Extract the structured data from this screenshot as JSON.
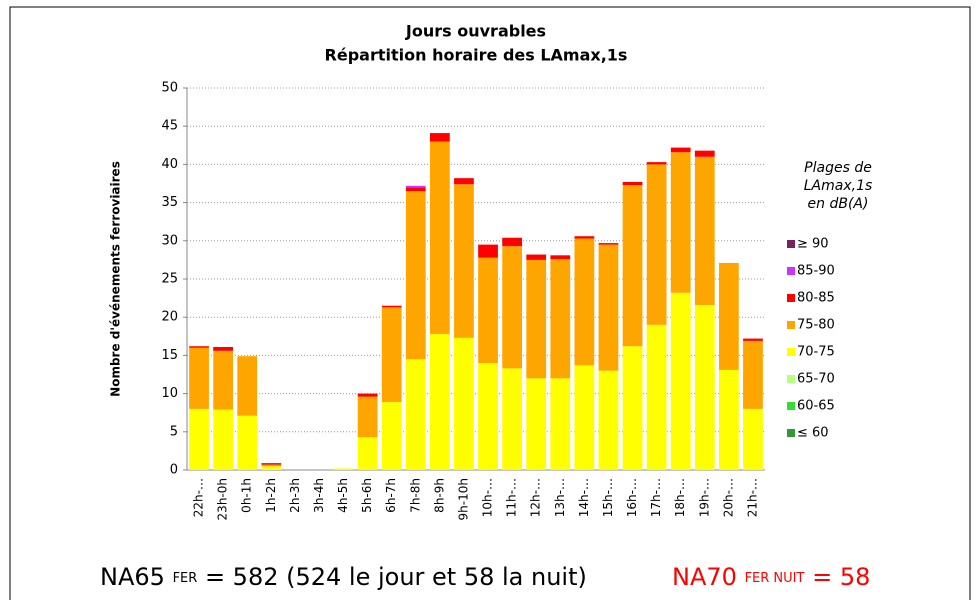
{
  "chart_data": {
    "type": "stacked-bar",
    "title": [
      "Jours ouvrables",
      "Répartition horaire des LAmax,1s"
    ],
    "y_label": "Nombre d'événements ferroviaires",
    "legend_title": [
      "Plages de",
      "LAmax,1s",
      "en dB(A)"
    ],
    "categories": [
      "22h-…",
      "23h-0h",
      "0h-1h",
      "1h-2h",
      "2h-3h",
      "3h-4h",
      "4h-5h",
      "5h-6h",
      "6h-7h",
      "7h-8h",
      "8h-9h",
      "9h-10h",
      "10h-…",
      "11h-…",
      "12h-…",
      "13h-…",
      "14h-…",
      "15h-…",
      "16h-…",
      "17h-…",
      "18h-…",
      "19h-…",
      "20h-…",
      "21h-…"
    ],
    "series": [
      {
        "name": "≥ 90",
        "color": "#7b1f5f",
        "values": [
          0,
          0,
          0,
          0,
          0,
          0,
          0,
          0,
          0,
          0,
          0,
          0,
          0,
          0,
          0,
          0,
          0,
          0,
          0,
          0,
          0,
          0,
          0,
          0
        ]
      },
      {
        "name": "85-90",
        "color": "#cc33ff",
        "values": [
          0,
          0,
          0,
          0,
          0,
          0,
          0,
          0,
          0,
          0.2,
          0,
          0,
          0,
          0,
          0,
          0,
          0,
          0,
          0,
          0,
          0,
          0,
          0,
          0
        ]
      },
      {
        "name": "80-85",
        "color": "#ff0000",
        "values": [
          0.2,
          0.5,
          0,
          0.2,
          0,
          0,
          0,
          0.4,
          0.2,
          0.5,
          1.1,
          0.8,
          1.7,
          1.1,
          0.7,
          0.5,
          0.3,
          0.2,
          0.4,
          0.3,
          0.6,
          0.8,
          0,
          0.3
        ]
      },
      {
        "name": "75-80",
        "color": "#ffa500",
        "values": [
          8,
          7.7,
          7.8,
          0.2,
          0,
          0,
          0,
          5.3,
          12.4,
          22,
          25.2,
          20.1,
          13.8,
          16,
          15.5,
          15.6,
          16.6,
          16.5,
          21.1,
          21,
          18.4,
          19.4,
          14,
          8.9
        ]
      },
      {
        "name": "70-75",
        "color": "#ffff00",
        "values": [
          8,
          7.9,
          7.1,
          0.5,
          0,
          0,
          0.2,
          4.3,
          8.9,
          14.5,
          17.8,
          17.3,
          14,
          13.3,
          12,
          12,
          13.7,
          13,
          16.2,
          19,
          23.2,
          21.6,
          13.1,
          8
        ]
      },
      {
        "name": "65-70",
        "color": "#b3ff80",
        "values": [
          0,
          0,
          0,
          0,
          0,
          0,
          0,
          0,
          0,
          0,
          0,
          0,
          0,
          0,
          0,
          0,
          0,
          0,
          0,
          0,
          0,
          0,
          0,
          0
        ]
      },
      {
        "name": "60-65",
        "color": "#33dd33",
        "values": [
          0,
          0,
          0,
          0,
          0,
          0,
          0,
          0,
          0,
          0,
          0,
          0,
          0,
          0,
          0,
          0,
          0,
          0,
          0,
          0,
          0,
          0,
          0,
          0
        ]
      },
      {
        "name": "≤  60",
        "color": "#339933",
        "values": [
          0,
          0,
          0,
          0,
          0,
          0,
          0,
          0,
          0,
          0,
          0,
          0,
          0,
          0,
          0,
          0,
          0,
          0,
          0,
          0,
          0,
          0,
          0,
          0
        ]
      }
    ],
    "ylim": [
      0,
      50
    ],
    "yticks": [
      0,
      5,
      10,
      15,
      20,
      25,
      30,
      35,
      40,
      45,
      50
    ],
    "grid": true
  },
  "footer": [
    {
      "main": "NA65",
      "sub": "FER",
      "rest": "= 582 (524 le jour et 58 la nuit)",
      "color": "#000000"
    },
    {
      "main": "NA70",
      "sub": "FER NUIT",
      "rest": "= 58",
      "color": "#ff0000"
    }
  ]
}
